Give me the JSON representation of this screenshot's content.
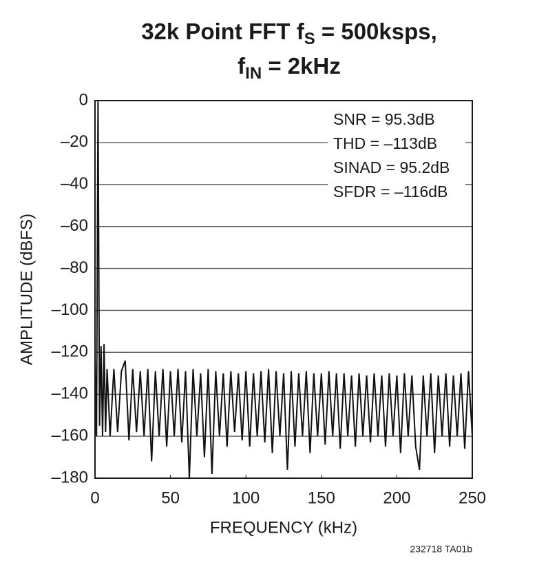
{
  "chart_data": {
    "type": "line",
    "title_parts": [
      "32k Point FFT f",
      "S",
      " = 500ksps,",
      "f",
      "IN",
      " = 2kHz"
    ],
    "x_label": "FREQUENCY (kHz)",
    "y_label": "AMPLITUDE (dBFS)",
    "annotations": [
      "SNR = 95.3dB",
      "THD = –113dB",
      "SINAD = 95.2dB",
      "SFDR = –116dB"
    ],
    "footnote": "232718 TA01b",
    "color": "#111111",
    "grid": true,
    "xlim": [
      0,
      250
    ],
    "xticks": [
      0,
      50,
      100,
      150,
      200,
      250
    ],
    "ylim": [
      -180,
      0
    ],
    "yticks": [
      0,
      {
        "value": -20,
        "label": "–20"
      },
      {
        "value": -40,
        "label": "–40"
      },
      {
        "value": -60,
        "label": "–60"
      },
      {
        "value": -80,
        "label": "–80"
      },
      {
        "value": -100,
        "label": "–100"
      },
      {
        "value": -120,
        "label": "–120"
      },
      {
        "value": -140,
        "label": "–140"
      },
      {
        "value": -160,
        "label": "–160"
      },
      {
        "value": -180,
        "label": "–180"
      }
    ],
    "x": [
      0,
      1,
      2,
      3,
      4,
      5,
      6,
      7,
      8,
      10,
      12.5,
      15,
      17.5,
      20,
      22.5,
      25,
      27.5,
      30,
      32.5,
      35,
      37.5,
      40,
      42.5,
      45,
      47.5,
      50,
      52.5,
      55,
      57.5,
      60,
      62.5,
      65,
      67.5,
      70,
      72.5,
      75,
      77.5,
      80,
      82.5,
      85,
      87.5,
      90,
      92.5,
      95,
      97.5,
      100,
      102.5,
      105,
      107.5,
      110,
      112.5,
      115,
      117.5,
      120,
      122.5,
      125,
      127.5,
      130,
      132.5,
      135,
      137.5,
      140,
      142.5,
      145,
      147.5,
      150,
      152.5,
      155,
      157.5,
      160,
      162.5,
      165,
      167.5,
      170,
      172.5,
      175,
      177.5,
      180,
      182.5,
      185,
      187.5,
      190,
      192.5,
      195,
      197.5,
      200,
      202.5,
      205,
      207.5,
      210,
      212.5,
      215,
      217.5,
      220,
      222.5,
      225,
      227.5,
      230,
      232.5,
      235,
      237.5,
      240,
      242.5,
      245,
      247.5,
      250
    ],
    "values": [
      -122,
      -160,
      0,
      -155,
      -117,
      -160,
      -116,
      -158,
      -128,
      -160,
      -128,
      -158,
      -129,
      -124,
      -162,
      -128,
      -158,
      -129,
      -160,
      -128,
      -172,
      -129,
      -160,
      -128,
      -165,
      -129,
      -160,
      -128,
      -163,
      -129,
      -180,
      -128,
      -160,
      -130,
      -170,
      -128,
      -178,
      -129,
      -160,
      -130,
      -165,
      -129,
      -158,
      -130,
      -162,
      -129,
      -165,
      -130,
      -160,
      -129,
      -163,
      -128,
      -168,
      -129,
      -160,
      -130,
      -176,
      -129,
      -165,
      -130,
      -160,
      -129,
      -168,
      -130,
      -160,
      -130,
      -164,
      -129,
      -160,
      -130,
      -166,
      -130,
      -160,
      -131,
      -165,
      -130,
      -160,
      -131,
      -163,
      -130,
      -160,
      -131,
      -165,
      -130,
      -160,
      -131,
      -168,
      -130,
      -160,
      -131,
      -165,
      -176,
      -131,
      -160,
      -130,
      -168,
      -131,
      -160,
      -130,
      -165,
      -131,
      -160,
      -130,
      -166,
      -129,
      -160
    ]
  }
}
